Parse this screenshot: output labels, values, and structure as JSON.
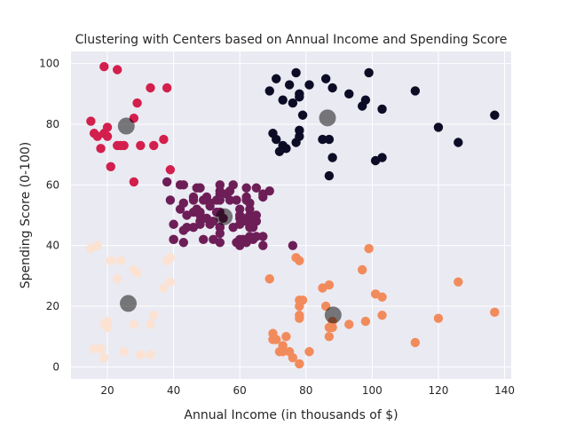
{
  "chart_data": {
    "type": "scatter",
    "title": "Clustering with Centers based on Annual Income and Spending Score",
    "xlabel": "Annual Income (in thousands of $)",
    "ylabel": "Spending Score (0-100)",
    "xlim": [
      9,
      142
    ],
    "ylim": [
      -4,
      104
    ],
    "xticks": [
      "20",
      "40",
      "60",
      "80",
      "100",
      "120",
      "140"
    ],
    "yticks": [
      "0",
      "20",
      "40",
      "60",
      "80",
      "100"
    ],
    "grid": true,
    "background": "#eaeaf2",
    "series": [
      {
        "color": "#d31f4d",
        "points": [
          [
            19,
            99
          ],
          [
            23,
            98
          ],
          [
            15,
            81
          ],
          [
            16,
            77
          ],
          [
            17,
            76
          ],
          [
            18,
            72
          ],
          [
            19,
            77
          ],
          [
            20,
            79
          ],
          [
            20,
            76
          ],
          [
            21,
            66
          ],
          [
            23,
            73
          ],
          [
            24,
            73
          ],
          [
            25,
            73
          ],
          [
            28,
            82
          ],
          [
            28,
            61
          ],
          [
            29,
            87
          ],
          [
            30,
            73
          ],
          [
            33,
            92
          ],
          [
            34,
            73
          ],
          [
            37,
            75
          ],
          [
            38,
            92
          ],
          [
            39,
            65
          ]
        ]
      },
      {
        "color": "#0c0c26",
        "points": [
          [
            69,
            91
          ],
          [
            70,
            77
          ],
          [
            71,
            95
          ],
          [
            71,
            75
          ],
          [
            72,
            71
          ],
          [
            73,
            88
          ],
          [
            73,
            73
          ],
          [
            74,
            72
          ],
          [
            75,
            93
          ],
          [
            76,
            87
          ],
          [
            77,
            97
          ],
          [
            77,
            74
          ],
          [
            78,
            90
          ],
          [
            78,
            78
          ],
          [
            78,
            76
          ],
          [
            78,
            89
          ],
          [
            79,
            83
          ],
          [
            81,
            93
          ],
          [
            85,
            75
          ],
          [
            86,
            95
          ],
          [
            87,
            63
          ],
          [
            87,
            75
          ],
          [
            88,
            69
          ],
          [
            88,
            92
          ],
          [
            93,
            90
          ],
          [
            97,
            86
          ],
          [
            98,
            88
          ],
          [
            99,
            97
          ],
          [
            101,
            68
          ],
          [
            103,
            85
          ],
          [
            103,
            69
          ],
          [
            113,
            91
          ],
          [
            120,
            79
          ],
          [
            126,
            74
          ],
          [
            137,
            83
          ]
        ]
      },
      {
        "color": "#6d1e57",
        "points": [
          [
            38,
            61
          ],
          [
            39,
            55
          ],
          [
            40,
            47
          ],
          [
            40,
            42
          ],
          [
            40,
            42
          ],
          [
            42,
            52
          ],
          [
            42,
            60
          ],
          [
            43,
            54
          ],
          [
            43,
            60
          ],
          [
            43,
            45
          ],
          [
            43,
            41
          ],
          [
            44,
            50
          ],
          [
            44,
            46
          ],
          [
            46,
            51
          ],
          [
            46,
            46
          ],
          [
            46,
            56
          ],
          [
            46,
            55
          ],
          [
            47,
            52
          ],
          [
            47,
            59
          ],
          [
            48,
            51
          ],
          [
            48,
            59
          ],
          [
            48,
            50
          ],
          [
            48,
            48
          ],
          [
            48,
            59
          ],
          [
            48,
            47
          ],
          [
            49,
            55
          ],
          [
            49,
            42
          ],
          [
            50,
            49
          ],
          [
            50,
            56
          ],
          [
            51,
            47
          ],
          [
            51,
            54
          ],
          [
            51,
            53
          ],
          [
            52,
            48
          ],
          [
            52,
            42
          ],
          [
            53,
            51
          ],
          [
            53,
            55
          ],
          [
            54,
            41
          ],
          [
            54,
            44
          ],
          [
            54,
            57
          ],
          [
            54,
            46
          ],
          [
            54,
            58
          ],
          [
            54,
            55
          ],
          [
            54,
            60
          ],
          [
            54,
            46
          ],
          [
            54,
            51
          ],
          [
            55,
            49
          ],
          [
            56,
            57
          ],
          [
            57,
            58
          ],
          [
            57,
            55
          ],
          [
            58,
            60
          ],
          [
            58,
            46
          ],
          [
            59,
            55
          ],
          [
            59,
            41
          ],
          [
            60,
            49
          ],
          [
            60,
            40
          ],
          [
            60,
            42
          ],
          [
            60,
            52
          ],
          [
            60,
            47
          ],
          [
            60,
            50
          ],
          [
            61,
            42
          ],
          [
            61,
            49
          ],
          [
            62,
            41
          ],
          [
            62,
            48
          ],
          [
            62,
            59
          ],
          [
            62,
            55
          ],
          [
            62,
            56
          ],
          [
            62,
            42
          ],
          [
            63,
            50
          ],
          [
            63,
            46
          ],
          [
            63,
            43
          ],
          [
            63,
            48
          ],
          [
            63,
            52
          ],
          [
            63,
            54
          ],
          [
            64,
            42
          ],
          [
            64,
            46
          ],
          [
            65,
            48
          ],
          [
            65,
            50
          ],
          [
            65,
            43
          ],
          [
            65,
            59
          ],
          [
            67,
            43
          ],
          [
            67,
            57
          ],
          [
            67,
            56
          ],
          [
            67,
            40
          ],
          [
            69,
            58
          ],
          [
            76,
            40
          ]
        ]
      },
      {
        "color": "#f28b5c",
        "points": [
          [
            69,
            29
          ],
          [
            70,
            11
          ],
          [
            70,
            9
          ],
          [
            71,
            9
          ],
          [
            72,
            5
          ],
          [
            73,
            7
          ],
          [
            73,
            5
          ],
          [
            74,
            10
          ],
          [
            75,
            5
          ],
          [
            76,
            3
          ],
          [
            77,
            36
          ],
          [
            78,
            1
          ],
          [
            78,
            22
          ],
          [
            78,
            17
          ],
          [
            78,
            16
          ],
          [
            78,
            20
          ],
          [
            78,
            35
          ],
          [
            79,
            22
          ],
          [
            81,
            5
          ],
          [
            85,
            26
          ],
          [
            86,
            20
          ],
          [
            87,
            27
          ],
          [
            87,
            13
          ],
          [
            87,
            10
          ],
          [
            88,
            15
          ],
          [
            88,
            13
          ],
          [
            93,
            14
          ],
          [
            97,
            32
          ],
          [
            98,
            15
          ],
          [
            99,
            39
          ],
          [
            101,
            24
          ],
          [
            103,
            17
          ],
          [
            103,
            23
          ],
          [
            113,
            8
          ],
          [
            120,
            16
          ],
          [
            126,
            28
          ],
          [
            137,
            18
          ]
        ]
      },
      {
        "color": "#fbe2d3",
        "points": [
          [
            15,
            39
          ],
          [
            16,
            6
          ],
          [
            17,
            40
          ],
          [
            18,
            6
          ],
          [
            19,
            3
          ],
          [
            19,
            14
          ],
          [
            20,
            15
          ],
          [
            20,
            13
          ],
          [
            21,
            35
          ],
          [
            23,
            29
          ],
          [
            24,
            35
          ],
          [
            25,
            5
          ],
          [
            28,
            14
          ],
          [
            28,
            32
          ],
          [
            29,
            31
          ],
          [
            30,
            4
          ],
          [
            33,
            4
          ],
          [
            33,
            14
          ],
          [
            34,
            17
          ],
          [
            37,
            26
          ],
          [
            38,
            35
          ],
          [
            39,
            36
          ],
          [
            39,
            28
          ]
        ]
      }
    ],
    "centers": {
      "color": "#000000",
      "opacity": 0.5,
      "points": [
        [
          25.7,
          79.4
        ],
        [
          86.5,
          82.1
        ],
        [
          55.3,
          49.5
        ],
        [
          88.2,
          17.1
        ],
        [
          26.3,
          20.9
        ]
      ]
    }
  }
}
